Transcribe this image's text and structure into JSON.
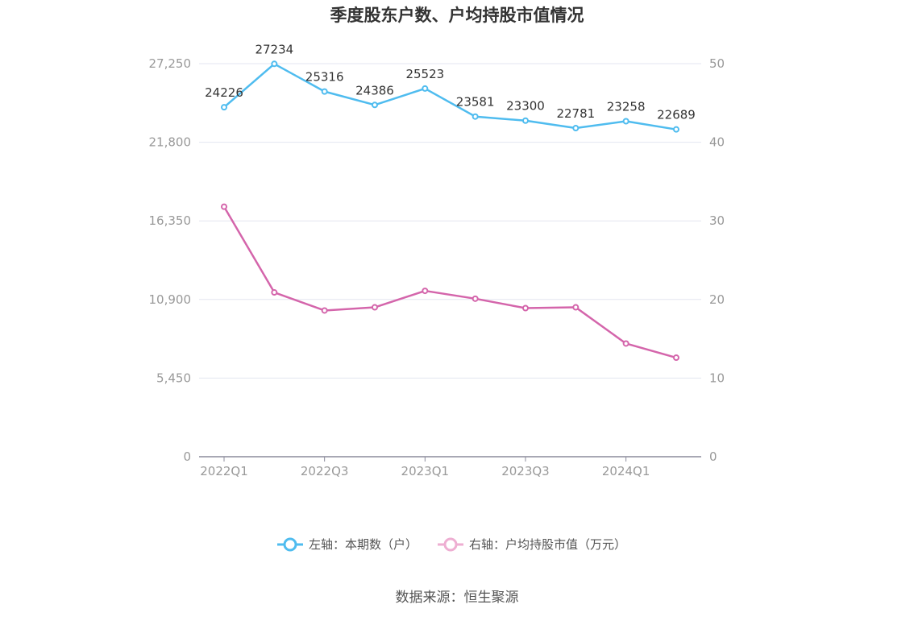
{
  "chart_data": {
    "type": "line",
    "title": "季度股东户数、户均持股市值情况",
    "categories": [
      "2022Q1",
      "2022Q2",
      "2022Q3",
      "2022Q4",
      "2023Q1",
      "2023Q2",
      "2023Q3",
      "2023Q4",
      "2024Q1",
      "2024Q2"
    ],
    "x_tick_labels": [
      "2022Q1",
      "2022Q3",
      "2023Q1",
      "2023Q3",
      "2024Q1"
    ],
    "series": [
      {
        "name": "左轴：本期数（户）",
        "axis": "left",
        "color": "#4fbcef",
        "values": [
          24226,
          27234,
          25316,
          24386,
          25523,
          23581,
          23300,
          22781,
          23258,
          22689
        ],
        "data_labels": [
          "24226",
          "27234",
          "25316",
          "24386",
          "25523",
          "23581",
          "23300",
          "22781",
          "23258",
          "22689"
        ]
      },
      {
        "name": "右轴：户均持股市值（万元）",
        "axis": "right",
        "color": "#d465ab",
        "values": [
          31.8,
          20.9,
          18.6,
          19.0,
          21.1,
          20.1,
          18.9,
          19.0,
          14.4,
          12.6
        ]
      }
    ],
    "left_axis": {
      "ylim": [
        0,
        27250
      ],
      "ticks": [
        "0",
        "5,450",
        "10,900",
        "16,350",
        "21,800",
        "27,250"
      ]
    },
    "right_axis": {
      "ylim": [
        0,
        50
      ],
      "ticks": [
        "0",
        "10",
        "20",
        "30",
        "40",
        "50"
      ]
    },
    "grid": true,
    "legend_position": "bottom"
  },
  "source": "数据来源：恒生聚源"
}
